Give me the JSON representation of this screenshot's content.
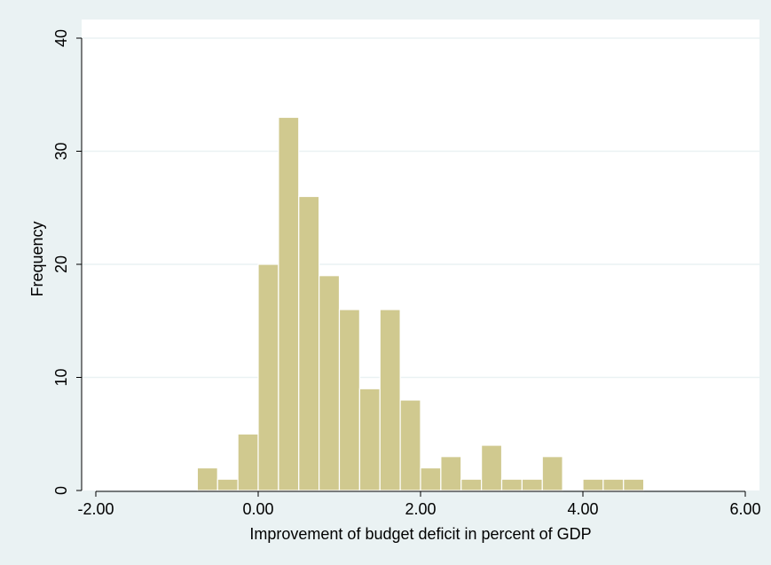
{
  "chart_data": {
    "type": "bar",
    "title": "",
    "xlabel": "Improvement of budget deficit in percent of GDP",
    "ylabel": "Frequency",
    "xlim": [
      -2.4,
      6.3
    ],
    "ylim": [
      0,
      40
    ],
    "grid": true,
    "x_ticks": [
      -2,
      0,
      2,
      4,
      6
    ],
    "x_tick_labels": [
      "-2.00",
      "0.00",
      "2.00",
      "4.00",
      "6.00"
    ],
    "y_ticks": [
      0,
      10,
      20,
      30,
      40
    ],
    "y_tick_labels": [
      "0",
      "10",
      "20",
      "30",
      "40"
    ],
    "bin_width": 0.25,
    "bins": [
      {
        "x0": -0.75,
        "x1": -0.5,
        "count": 2
      },
      {
        "x0": -0.5,
        "x1": -0.25,
        "count": 1
      },
      {
        "x0": -0.25,
        "x1": 0.0,
        "count": 5
      },
      {
        "x0": 0.0,
        "x1": 0.25,
        "count": 20
      },
      {
        "x0": 0.25,
        "x1": 0.5,
        "count": 33
      },
      {
        "x0": 0.5,
        "x1": 0.75,
        "count": 26
      },
      {
        "x0": 0.75,
        "x1": 1.0,
        "count": 19
      },
      {
        "x0": 1.0,
        "x1": 1.25,
        "count": 16
      },
      {
        "x0": 1.25,
        "x1": 1.5,
        "count": 9
      },
      {
        "x0": 1.5,
        "x1": 1.75,
        "count": 16
      },
      {
        "x0": 1.75,
        "x1": 2.0,
        "count": 8
      },
      {
        "x0": 2.0,
        "x1": 2.25,
        "count": 2
      },
      {
        "x0": 2.25,
        "x1": 2.5,
        "count": 3
      },
      {
        "x0": 2.5,
        "x1": 2.75,
        "count": 1
      },
      {
        "x0": 2.75,
        "x1": 3.0,
        "count": 4
      },
      {
        "x0": 3.0,
        "x1": 3.25,
        "count": 1
      },
      {
        "x0": 3.25,
        "x1": 3.5,
        "count": 1
      },
      {
        "x0": 3.5,
        "x1": 3.75,
        "count": 3
      },
      {
        "x0": 4.0,
        "x1": 4.25,
        "count": 1
      },
      {
        "x0": 4.25,
        "x1": 4.5,
        "count": 1
      },
      {
        "x0": 4.5,
        "x1": 4.75,
        "count": 1
      }
    ],
    "colors": {
      "background": "#eaf2f3",
      "plot_area": "#ffffff",
      "bar_fill": "#d0c98f",
      "bar_edge": "#ffffff",
      "grid": "#eaf2f3"
    }
  }
}
